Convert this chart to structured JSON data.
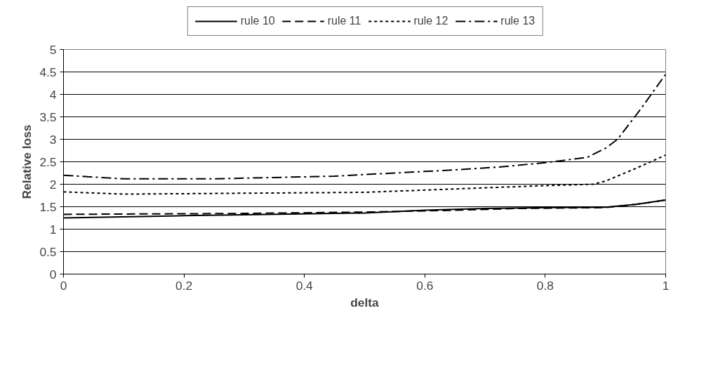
{
  "chart_data": {
    "type": "line",
    "xlabel": "delta",
    "ylabel": "Relative loss",
    "xlim": [
      0,
      1
    ],
    "xticks": [
      0,
      0.2,
      0.4,
      0.6,
      0.8,
      1
    ],
    "ylim": [
      0,
      5
    ],
    "yticks": [
      0,
      0.5,
      1,
      1.5,
      2,
      2.5,
      3,
      3.5,
      4,
      4.5,
      5
    ],
    "grid": "y",
    "legend": "top",
    "marker": "none",
    "series": [
      {
        "name": "rule 10",
        "color": "#000000",
        "line_style": "solid",
        "x": [
          0,
          0.2,
          0.3,
          0.5,
          0.6,
          0.7,
          0.8,
          0.9,
          0.95,
          1
        ],
        "values": [
          1.25,
          1.3,
          1.32,
          1.36,
          1.42,
          1.46,
          1.48,
          1.49,
          1.55,
          1.65
        ]
      },
      {
        "name": "rule 11",
        "color": "#000000",
        "line_style": "dashed",
        "x": [
          0,
          0.3,
          0.5,
          0.65,
          0.75,
          0.9,
          0.95,
          1
        ],
        "values": [
          1.33,
          1.35,
          1.38,
          1.42,
          1.46,
          1.48,
          1.55,
          1.65
        ]
      },
      {
        "name": "rule 12",
        "color": "#000000",
        "line_style": "dotted",
        "x": [
          0,
          0.1,
          0.3,
          0.5,
          0.6,
          0.7,
          0.8,
          0.88,
          0.9,
          0.95,
          1
        ],
        "values": [
          1.83,
          1.78,
          1.8,
          1.82,
          1.87,
          1.92,
          1.97,
          2.0,
          2.07,
          2.35,
          2.65
        ]
      },
      {
        "name": "rule 13",
        "color": "#000000",
        "line_style": "dashdot",
        "x": [
          0,
          0.1,
          0.25,
          0.35,
          0.45,
          0.55,
          0.65,
          0.72,
          0.8,
          0.87,
          0.9,
          0.92,
          0.96,
          1
        ],
        "values": [
          2.2,
          2.12,
          2.12,
          2.15,
          2.18,
          2.25,
          2.32,
          2.38,
          2.48,
          2.6,
          2.8,
          3.0,
          3.7,
          4.45
        ]
      }
    ]
  }
}
